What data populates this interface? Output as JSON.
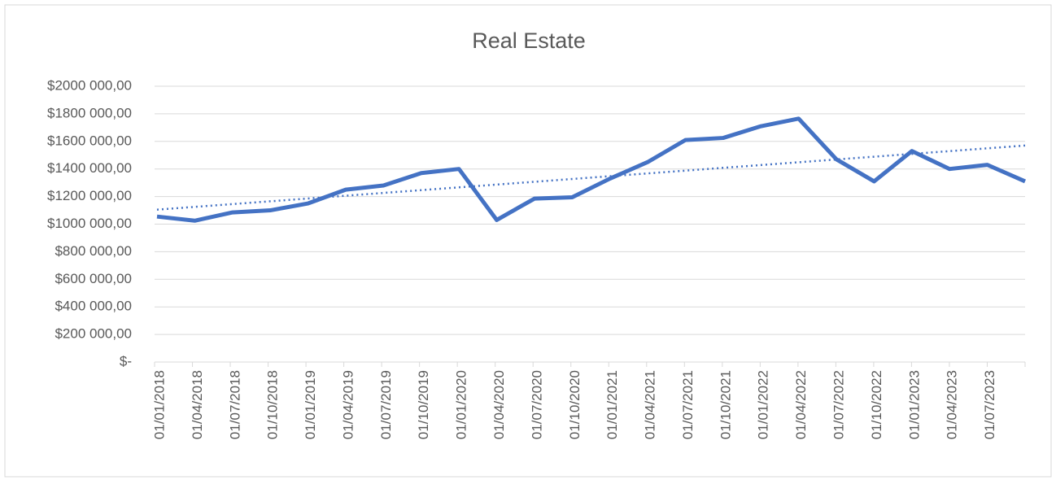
{
  "chart_data": {
    "type": "line",
    "title": "Real Estate",
    "categories": [
      "01/01/2018",
      "01/04/2018",
      "01/07/2018",
      "01/10/2018",
      "01/01/2019",
      "01/04/2019",
      "01/07/2019",
      "01/10/2019",
      "01/01/2020",
      "01/04/2020",
      "01/07/2020",
      "01/10/2020",
      "01/01/2021",
      "01/04/2021",
      "01/07/2021",
      "01/10/2021",
      "01/01/2022",
      "01/04/2022",
      "01/07/2022",
      "01/10/2022",
      "01/01/2023",
      "01/04/2023",
      "01/07/2023",
      null
    ],
    "series": [
      {
        "color": "#4472c4",
        "values": [
          1055000,
          1025000,
          1085000,
          1100000,
          1150000,
          1250000,
          1280000,
          1370000,
          1400000,
          1030000,
          1185000,
          1195000,
          1330000,
          1450000,
          1610000,
          1625000,
          1710000,
          1765000,
          1470000,
          1310000,
          1530000,
          1400000,
          1430000,
          1310000
        ]
      }
    ],
    "trendline": {
      "color": "#4472c4",
      "style": "dotted",
      "values": [
        1105000,
        1570000
      ]
    },
    "ylim": [
      0,
      2000000
    ],
    "yticks": [
      {
        "value": 0,
        "label": "$-"
      },
      {
        "value": 200000,
        "label": "$200 000,00"
      },
      {
        "value": 400000,
        "label": "$400 000,00"
      },
      {
        "value": 600000,
        "label": "$600 000,00"
      },
      {
        "value": 800000,
        "label": "$800 000,00"
      },
      {
        "value": 1000000,
        "label": "$1000 000,00"
      },
      {
        "value": 1200000,
        "label": "$1200 000,00"
      },
      {
        "value": 1400000,
        "label": "$1400 000,00"
      },
      {
        "value": 1600000,
        "label": "$1600 000,00"
      },
      {
        "value": 1800000,
        "label": "$1800 000,00"
      },
      {
        "value": 2000000,
        "label": "$2000 000,00"
      }
    ],
    "grid": true
  }
}
